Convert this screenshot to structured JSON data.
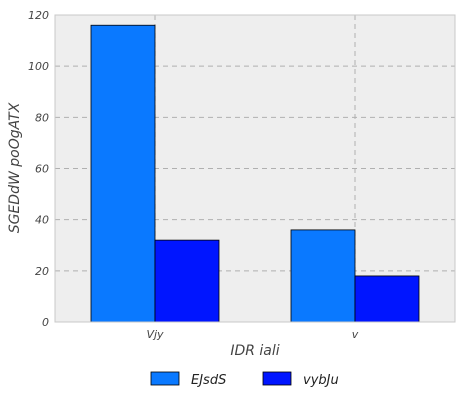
{
  "chart_data": {
    "type": "bar",
    "categories": [
      "Vjy",
      "v"
    ],
    "series": [
      {
        "name": "EJsdS",
        "values": [
          116,
          36
        ],
        "color": "#0a79ff"
      },
      {
        "name": "vybJu",
        "values": [
          32,
          18
        ],
        "color": "#0015ff"
      }
    ],
    "xlabel": "IDR iali",
    "ylabel": "SGEDdW poOgATX",
    "ylim": [
      0,
      120
    ],
    "yticks": [
      0,
      20,
      40,
      60,
      80,
      100,
      120
    ],
    "grid": true,
    "legend_position": "bottom-center",
    "background_color": "#eeeeee",
    "grid_color": "#b0b0b0"
  }
}
